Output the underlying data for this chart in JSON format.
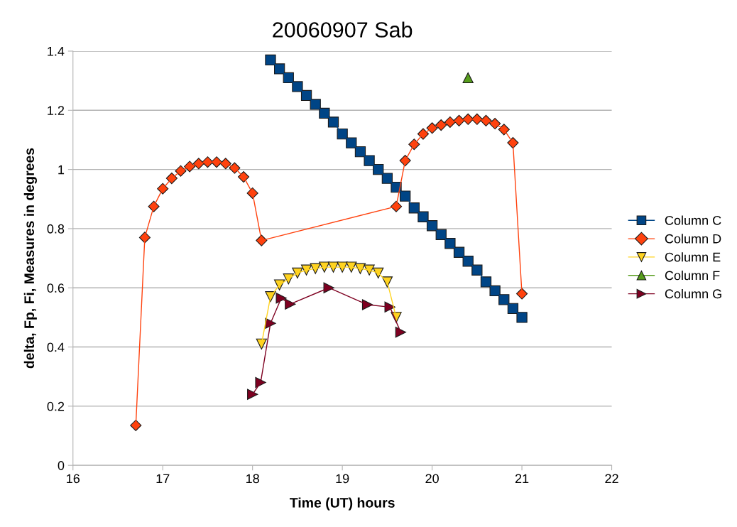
{
  "chart_data": {
    "type": "line",
    "title": "20060907 Sab",
    "xlabel": "Time (UT) hours",
    "ylabel": "delta, Fp, Fi, Measures in degrees",
    "xlim": [
      16,
      22
    ],
    "xticks": [
      16,
      17,
      18,
      19,
      20,
      21,
      22
    ],
    "ylim": [
      0,
      1.4
    ],
    "yticks": [
      0,
      0.2,
      0.4,
      0.6,
      0.8,
      1,
      1.2,
      1.4
    ],
    "grid": "y",
    "legend": "right",
    "series": [
      {
        "name": "Column C",
        "color": "#004586",
        "marker": "square",
        "x": [
          18.2,
          18.3,
          18.4,
          18.5,
          18.6,
          18.7,
          18.8,
          18.9,
          19.0,
          19.1,
          19.2,
          19.3,
          19.4,
          19.5,
          19.6,
          19.7,
          19.8,
          19.9,
          20.0,
          20.1,
          20.2,
          20.3,
          20.4,
          20.5,
          20.6,
          20.7,
          20.8,
          20.9,
          21.0
        ],
        "values": [
          1.37,
          1.34,
          1.31,
          1.28,
          1.25,
          1.22,
          1.19,
          1.16,
          1.12,
          1.09,
          1.06,
          1.03,
          1.0,
          0.97,
          0.94,
          0.91,
          0.87,
          0.84,
          0.81,
          0.78,
          0.75,
          0.72,
          0.69,
          0.66,
          0.62,
          0.59,
          0.56,
          0.53,
          0.5
        ]
      },
      {
        "name": "Column D",
        "color": "#ff420e",
        "marker": "diamond",
        "x": [
          16.7,
          16.8,
          16.9,
          17.0,
          17.1,
          17.2,
          17.3,
          17.4,
          17.5,
          17.6,
          17.7,
          17.8,
          17.9,
          18.0,
          18.1,
          19.6,
          19.7,
          19.8,
          19.9,
          20.0,
          20.1,
          20.2,
          20.3,
          20.4,
          20.5,
          20.6,
          20.7,
          20.8,
          20.9,
          21.0
        ],
        "values": [
          0.135,
          0.77,
          0.875,
          0.935,
          0.97,
          0.995,
          1.01,
          1.02,
          1.025,
          1.025,
          1.02,
          1.005,
          0.975,
          0.92,
          0.76,
          0.875,
          1.03,
          1.085,
          1.12,
          1.14,
          1.15,
          1.16,
          1.165,
          1.17,
          1.17,
          1.165,
          1.155,
          1.135,
          1.09,
          0.58
        ]
      },
      {
        "name": "Column E",
        "color": "#ffd320",
        "marker": "triangle_down",
        "x": [
          18.1,
          18.2,
          18.3,
          18.4,
          18.5,
          18.6,
          18.7,
          18.8,
          18.9,
          19.0,
          19.1,
          19.2,
          19.3,
          19.4,
          19.5,
          19.6
        ],
        "values": [
          0.41,
          0.57,
          0.61,
          0.63,
          0.65,
          0.66,
          0.665,
          0.67,
          0.67,
          0.67,
          0.67,
          0.665,
          0.66,
          0.65,
          0.62,
          0.5
        ]
      },
      {
        "name": "Column F",
        "color": "#579d1c",
        "marker": "triangle",
        "x": [
          20.4
        ],
        "values": [
          1.31
        ]
      },
      {
        "name": "Column G",
        "color": "#7e0021",
        "marker": "triangle_right",
        "x": [
          18.0,
          18.09,
          18.2,
          18.32,
          18.42,
          18.85,
          19.28,
          19.53,
          19.65
        ],
        "values": [
          0.24,
          0.28,
          0.48,
          0.565,
          0.545,
          0.6,
          0.543,
          0.535,
          0.45
        ]
      }
    ]
  }
}
